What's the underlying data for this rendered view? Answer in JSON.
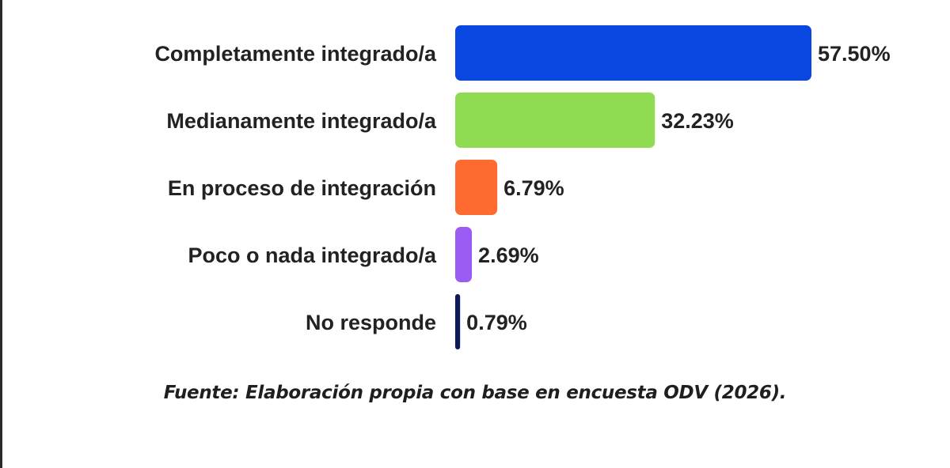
{
  "chart_data": {
    "type": "bar",
    "orientation": "horizontal",
    "categories": [
      "Completamente integrado/a",
      "Medianamente integrado/a",
      "En proceso de integración",
      "Poco o nada integrado/a",
      "No responde"
    ],
    "values": [
      57.5,
      32.23,
      6.79,
      2.69,
      0.79
    ],
    "value_labels": [
      "57.50%",
      "32.23%",
      "6.79%",
      "2.69%",
      "0.79%"
    ],
    "unit": "%",
    "colors": [
      "#0a47e0",
      "#8fdc52",
      "#ff6a30",
      "#9a5cf2",
      "#0c1a5a"
    ],
    "xlim": [
      0,
      57.5
    ],
    "grid": false,
    "legend": "none"
  },
  "source_note": "Fuente: Elaboración propia con base en encuesta ODV (2026)."
}
